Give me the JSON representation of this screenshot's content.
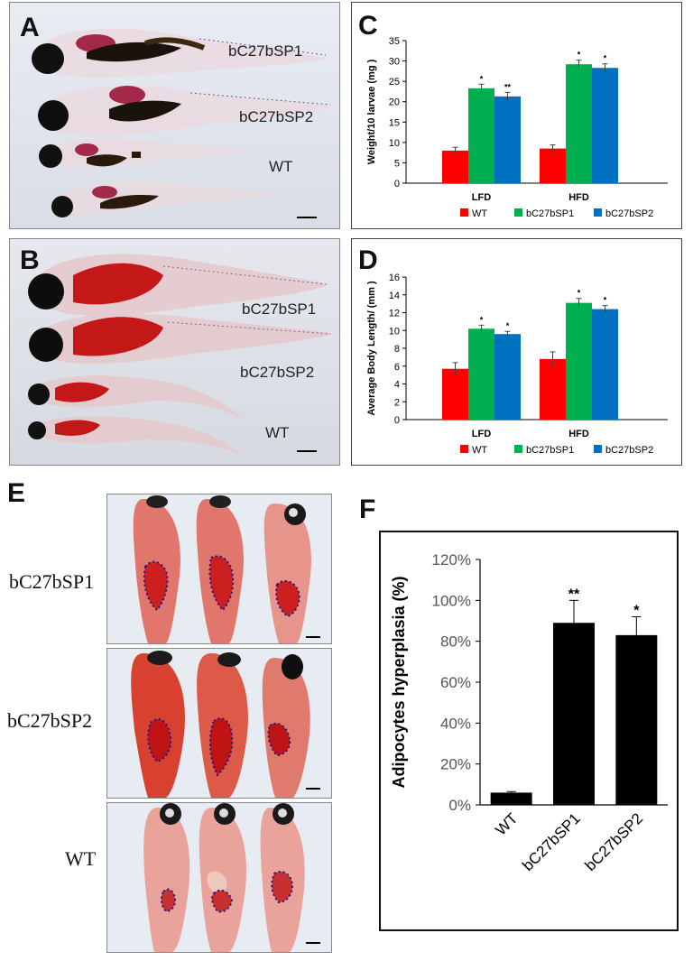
{
  "panels": {
    "A": {
      "letter": "A",
      "labels": [
        "bC27bSP1",
        "bC27bSP2",
        "WT"
      ]
    },
    "B": {
      "letter": "B",
      "labels": [
        "bC27bSP1",
        "bC27bSP2",
        "WT"
      ]
    },
    "C": {
      "letter": "C"
    },
    "D": {
      "letter": "D"
    },
    "E": {
      "letter": "E",
      "labels": [
        "bC27bSP1",
        "bC27bSP2",
        "WT"
      ]
    },
    "F": {
      "letter": "F"
    }
  },
  "colors": {
    "wt": "#ff0000",
    "sp1": "#00b050",
    "sp2": "#0070c0",
    "bar_f": "#000000"
  },
  "chart_data": [
    {
      "id": "C",
      "type": "bar",
      "ylabel": "Weight/10 larvae (mg )",
      "categories": [
        "LFD",
        "HFD"
      ],
      "series": [
        {
          "name": "WT",
          "values": [
            8,
            8.5
          ],
          "errors": [
            0.8,
            0.9
          ],
          "sig": [
            "",
            ""
          ]
        },
        {
          "name": "bC27bSP1",
          "values": [
            23.3,
            29.2
          ],
          "errors": [
            1.0,
            1.0
          ],
          "sig": [
            "*",
            "*"
          ]
        },
        {
          "name": "bC27bSP2",
          "values": [
            21.3,
            28.3
          ],
          "errors": [
            1.0,
            1.0
          ],
          "sig": [
            "**",
            "*"
          ]
        }
      ],
      "ylim": [
        0,
        35
      ],
      "yticks": [
        "0",
        "5",
        "10",
        "15",
        "20",
        "25",
        "30",
        "35"
      ]
    },
    {
      "id": "D",
      "type": "bar",
      "ylabel": "Average Body Length/ (mm )",
      "categories": [
        "LFD",
        "HFD"
      ],
      "series": [
        {
          "name": "WT",
          "values": [
            5.7,
            6.8
          ],
          "errors": [
            0.7,
            0.8
          ],
          "sig": [
            "",
            ""
          ]
        },
        {
          "name": "bC27bSP1",
          "values": [
            10.2,
            13.1
          ],
          "errors": [
            0.4,
            0.5
          ],
          "sig": [
            "*",
            "*"
          ]
        },
        {
          "name": "bC27bSP2",
          "values": [
            9.6,
            12.4
          ],
          "errors": [
            0.3,
            0.4
          ],
          "sig": [
            "*",
            "*"
          ]
        }
      ],
      "ylim": [
        0,
        16
      ],
      "yticks": [
        "0",
        "2",
        "4",
        "6",
        "8",
        "10",
        "12",
        "14",
        "16"
      ]
    },
    {
      "id": "F",
      "type": "bar",
      "ylabel": "Adipocytes hyperplasia (%)",
      "categories": [
        "WT",
        "bC27bSP1",
        "bC27bSP2"
      ],
      "values": [
        6,
        89,
        83
      ],
      "errors": [
        0.5,
        11,
        9
      ],
      "sig": [
        "",
        "**",
        "*"
      ],
      "ylim": [
        0,
        120
      ],
      "yticks": [
        "0%",
        "20%",
        "40%",
        "60%",
        "80%",
        "100%",
        "120%"
      ]
    }
  ]
}
